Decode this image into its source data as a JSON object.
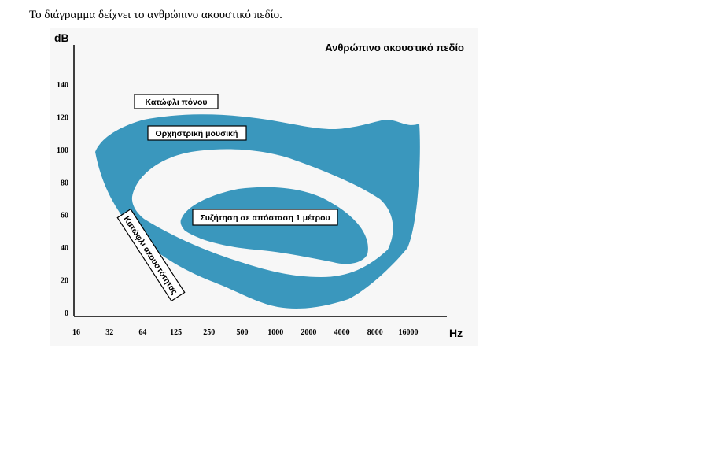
{
  "caption": "Το διάγραμμα δείχνει το ανθρώπινο ακουστικό πεδίο.",
  "chart_data": {
    "type": "area",
    "title": "Ανθρώπινο ακουστικό πεδίο",
    "ylabel": "dB",
    "xlabel": "Hz",
    "x_ticks": [
      "16",
      "32",
      "64",
      "125",
      "250",
      "500",
      "1000",
      "2000",
      "4000",
      "8000",
      "16000"
    ],
    "y_ticks": [
      0,
      20,
      40,
      60,
      80,
      100,
      120,
      140
    ],
    "ylim": [
      0,
      150
    ],
    "grid": false,
    "colors": {
      "region": "#3a97bd",
      "background": "#f7f7f7"
    },
    "regions": [
      {
        "name": "Κατώφλι πόνου",
        "upper_boundary": {
          "x": [
            "16",
            "32",
            "64",
            "125",
            "250",
            "500",
            "1000",
            "2000",
            "4000",
            "8000",
            "16000"
          ],
          "y": [
            98,
            115,
            121,
            122,
            122,
            121,
            118,
            112,
            113,
            120,
            117
          ]
        }
      },
      {
        "name": "Κατώφλι ακουστότητας",
        "lower_boundary": {
          "x": [
            "16",
            "32",
            "64",
            "125",
            "250",
            "500",
            "1000",
            "2000",
            "4000",
            "8000",
            "16000"
          ],
          "y": [
            98,
            72,
            48,
            35,
            22,
            12,
            6,
            5,
            10,
            30,
            117
          ]
        }
      },
      {
        "name": "Ορχηστρική μουσική"
      },
      {
        "name": "Συζήτηση σε απόσταση 1 μέτρου"
      }
    ],
    "labels": {
      "pain": "Κατώφλι πόνου",
      "music": "Ορχηστρική μουσική",
      "speech": "Συζήτηση σε απόσταση 1 μέτρου",
      "hearing": "Κατώφλι ακουστότητας"
    }
  }
}
